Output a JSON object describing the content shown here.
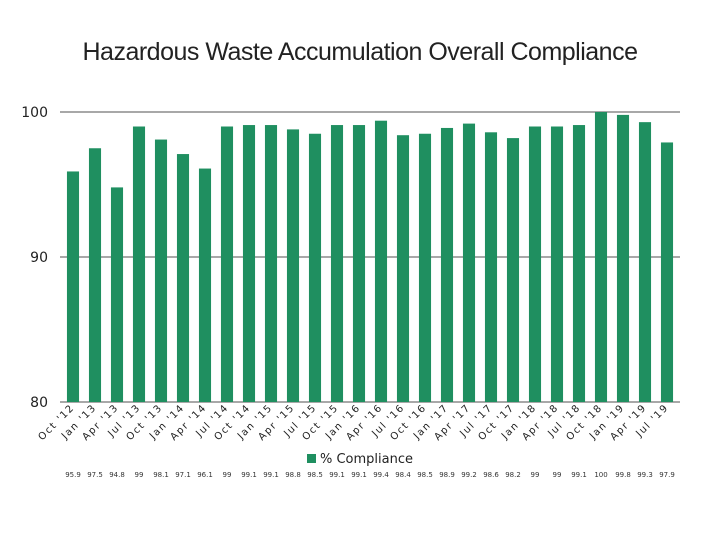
{
  "chart_data": {
    "type": "bar",
    "title": "Hazardous Waste Accumulation Overall Compliance",
    "xlabel": "",
    "ylabel": "",
    "ylim": [
      80,
      100
    ],
    "yticks": [
      80,
      90,
      100
    ],
    "grid": true,
    "legend_position": "bottom",
    "categories": [
      "Oct '12",
      "Jan '13",
      "Apr '13",
      "Jul '13",
      "Oct '13",
      "Jan '14",
      "Apr '14",
      "Jul '14",
      "Oct '14",
      "Jan '15",
      "Apr '15",
      "Jul '15",
      "Oct '15",
      "Jan '16",
      "Apr '16",
      "Jul '16",
      "Oct '16",
      "Jan '17",
      "Apr '17",
      "Jul '17",
      "Oct '17",
      "Jan '18",
      "Apr '18",
      "Jul '18",
      "Oct '18",
      "Jan '19",
      "Apr '19",
      "Jul '19"
    ],
    "series": [
      {
        "name": "% Compliance",
        "color": "#1f8f60",
        "values": [
          95.9,
          97.5,
          94.8,
          99,
          98.1,
          97.1,
          96.1,
          99,
          99.1,
          99.1,
          98.8,
          98.5,
          99.1,
          99.1,
          99.4,
          98.4,
          98.5,
          98.9,
          99.2,
          98.6,
          98.2,
          99,
          99,
          99.1,
          100,
          99.8,
          99.3,
          97.9
        ]
      }
    ],
    "data_table_labels": [
      "95.9",
      "97.5",
      "94.8",
      "99",
      "98.1",
      "97.1",
      "96.1",
      "99",
      "99.1",
      "99.1",
      "98.8",
      "98.5",
      "99.1",
      "99.1",
      "99.4",
      "98.4",
      "98.5",
      "98.9",
      "99.2",
      "98.6",
      "98.2",
      "99",
      "99",
      "99.1",
      "100",
      "99.8",
      "99.3",
      "97.9"
    ],
    "gridline_color": "#8c8c8c"
  }
}
